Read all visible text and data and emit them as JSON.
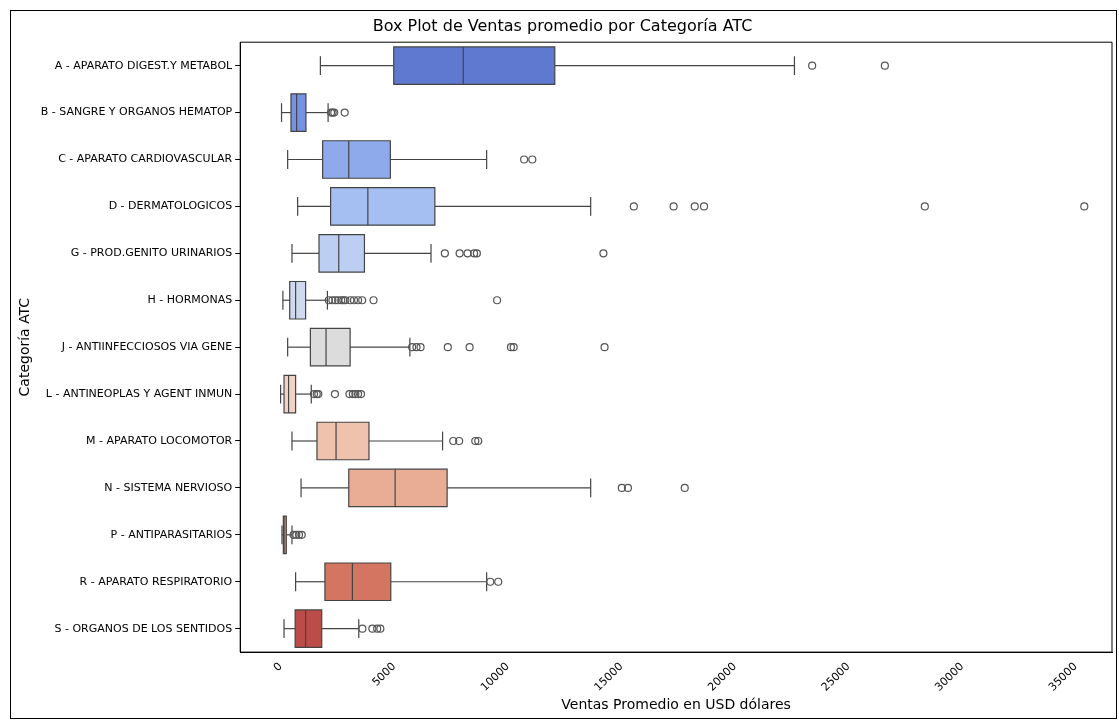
{
  "chart_data": {
    "type": "box",
    "title": "Box Plot de Ventas promedio por Categoría ATC",
    "xlabel": "Ventas Promedio en USD dólares",
    "ylabel": "Categoría ATC",
    "orientation": "horizontal",
    "categories": [
      "A - APARATO DIGEST.Y METABOL",
      "B - SANGRE Y ORGANOS HEMATOP",
      "C - APARATO CARDIOVASCULAR",
      "D - DERMATOLOGICOS",
      "G - PROD.GENITO URINARIOS",
      "H - HORMONAS",
      "J - ANTIINFECCIOSOS VIA GENE",
      "L - ANTINEOPLAS Y AGENT INMUN",
      "M - APARATO LOCOMOTOR",
      "N - SISTEMA NERVIOSO",
      "P - ANTIPARASITARIOS",
      "R - APARATO RESPIRATORIO",
      "S - ORGANOS DE LOS SENTIDOS"
    ],
    "colors": [
      "#5f79d0",
      "#7592e4",
      "#8faaea",
      "#a5bff3",
      "#bccff2",
      "#cfdaee",
      "#dcdcdc",
      "#f0d2c6",
      "#efc2ad",
      "#e9ad96",
      "#de8b71",
      "#d47561",
      "#bb4c47"
    ],
    "boxes": [
      {
        "low": 1750,
        "q1": 4980,
        "median": 8040,
        "q3": 12070,
        "high": 22620,
        "outliers": [
          23400,
          26600
        ]
      },
      {
        "low": 40,
        "q1": 455,
        "median": 705,
        "q3": 1115,
        "high": 2090,
        "outliers": [
          2220,
          2290,
          2360,
          2820
        ]
      },
      {
        "low": 310,
        "q1": 1850,
        "median": 3000,
        "q3": 4830,
        "high": 9070,
        "outliers": [
          10720,
          11080
        ]
      },
      {
        "low": 750,
        "q1": 2200,
        "median": 3840,
        "q3": 6790,
        "high": 13650,
        "outliers": [
          15550,
          17300,
          18230,
          18640,
          28360,
          35380
        ]
      },
      {
        "low": 500,
        "q1": 1690,
        "median": 2560,
        "q3": 3690,
        "high": 6620,
        "outliers": [
          7230,
          7880,
          8230,
          8520,
          8640,
          14210
        ]
      },
      {
        "low": 100,
        "q1": 400,
        "median": 660,
        "q3": 1100,
        "high": 2060,
        "outliers": [
          2120,
          2280,
          2410,
          2530,
          2670,
          2760,
          2850,
          3070,
          3230,
          3410,
          3590,
          4090,
          9530
        ]
      },
      {
        "low": 310,
        "q1": 1310,
        "median": 2000,
        "q3": 3060,
        "high": 5690,
        "outliers": [
          5790,
          5980,
          6160,
          7360,
          8320,
          10140,
          10260,
          14260
        ]
      },
      {
        "low": 0,
        "q1": 150,
        "median": 350,
        "q3": 660,
        "high": 1350,
        "outliers": [
          1470,
          1590,
          1660,
          2390,
          3030,
          3180,
          3290,
          3410,
          3540
        ]
      },
      {
        "low": 500,
        "q1": 1600,
        "median": 2440,
        "q3": 3890,
        "high": 7130,
        "outliers": [
          7600,
          7860,
          8570,
          8700
        ]
      },
      {
        "low": 900,
        "q1": 3000,
        "median": 5040,
        "q3": 7330,
        "high": 13650,
        "outliers": [
          15020,
          15290,
          17790
        ]
      },
      {
        "low": 60,
        "q1": 120,
        "median": 150,
        "q3": 250,
        "high": 500,
        "outliers": [
          570,
          690,
          810,
          930
        ]
      },
      {
        "low": 660,
        "q1": 1950,
        "median": 3160,
        "q3": 4850,
        "high": 9070,
        "outliers": [
          9230,
          9580
        ]
      },
      {
        "low": 150,
        "q1": 640,
        "median": 1100,
        "q3": 1810,
        "high": 3440,
        "outliers": [
          3600,
          4040,
          4250,
          4390
        ]
      }
    ],
    "xlim": [
      -1780,
      36600
    ],
    "xticks": [
      0,
      5000,
      10000,
      15000,
      20000,
      25000,
      30000,
      35000
    ],
    "grid": false,
    "legend": false
  }
}
